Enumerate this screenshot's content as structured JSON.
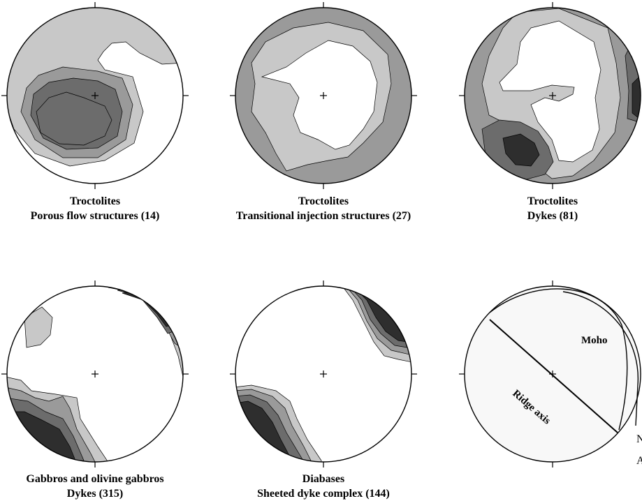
{
  "plots": [
    {
      "id": "p1",
      "line1": "Troctolites",
      "line2": "Porous flow structures (14)"
    },
    {
      "id": "p2",
      "line1": "Troctolites",
      "line2": "Transitional injection structures (27)"
    },
    {
      "id": "p3",
      "line1": "Troctolites",
      "line2": "Dykes (81)"
    },
    {
      "id": "p4",
      "line1": "Gabbros and olivine gabbros",
      "line2": "Dykes (315)"
    },
    {
      "id": "p5",
      "line1": "Diabases",
      "line2": "Sheeted dyke complex (144)"
    }
  ],
  "reference_plot": {
    "moho_label": "Moho",
    "ridge_label": "Ridge axis"
  },
  "edge_text": [
    "N",
    "A"
  ],
  "shades": {
    "level0": "#ffffff",
    "level1": "#c8c8c8",
    "level2": "#9a9a9a",
    "level3": "#6c6c6c",
    "level4": "#2e2e2e",
    "reference_fill": "#f8f8f8"
  }
}
